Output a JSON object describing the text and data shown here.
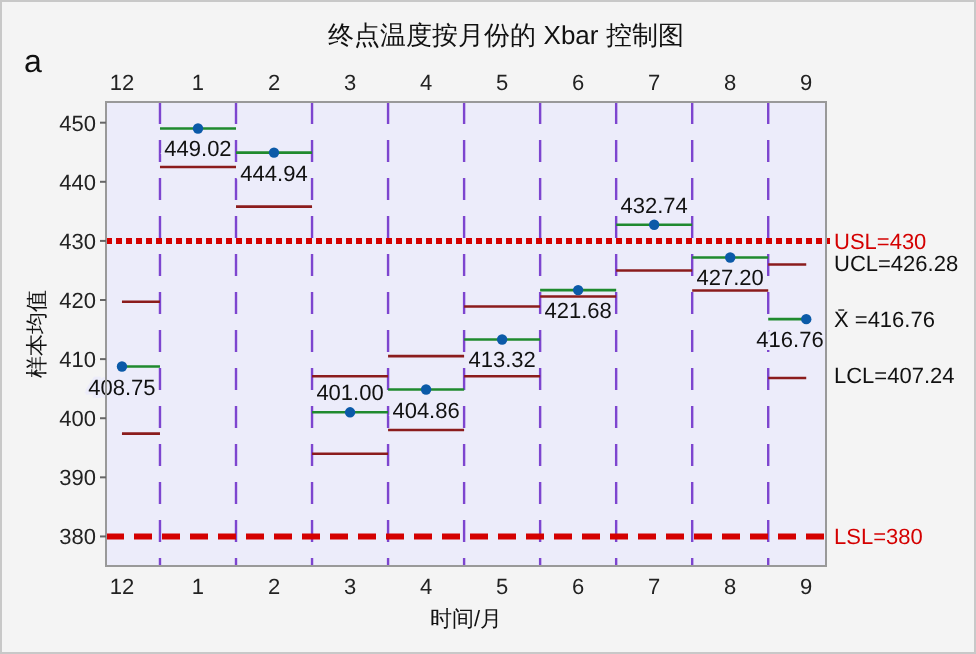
{
  "chart_data": {
    "type": "scatter",
    "title": "终点温度按月份的 Xbar 控制图",
    "xlabel": "时间/月",
    "ylabel": "样本均值",
    "categories": [
      "12",
      "1",
      "2",
      "3",
      "4",
      "5",
      "6",
      "7",
      "8",
      "9"
    ],
    "series": [
      {
        "type": "step",
        "color": "#1f8a2e",
        "values": [
          408.75,
          449.02,
          444.94,
          401.0,
          404.86,
          413.32,
          421.68,
          432.74,
          427.2,
          416.76
        ]
      },
      {
        "type": "step",
        "color": "#8b1c1c",
        "values": [
          419.7,
          null,
          null,
          407.1,
          410.5,
          418.9,
          null,
          null,
          null,
          426.0
        ]
      },
      {
        "type": "step",
        "color": "#8b1c1c",
        "values": [
          397.4,
          442.5,
          435.8,
          394.0,
          398.0,
          407.1,
          420.6,
          425.0,
          421.6,
          406.8
        ]
      },
      {
        "color": "#0b5aa8",
        "values": [
          408.75,
          449.02,
          444.94,
          401.0,
          404.86,
          413.32,
          421.68,
          432.74,
          427.2,
          416.76
        ],
        "value_labels": [
          "408.75",
          "449.02",
          "444.94",
          "401.00",
          "404.86",
          "413.32",
          "421.68",
          "432.74",
          "427.20",
          "416.76"
        ],
        "marker": "circle"
      }
    ],
    "ylim": [
      375,
      453.5
    ],
    "yticks": [
      380,
      390,
      400,
      410,
      420,
      430,
      440,
      450
    ],
    "grid": "x",
    "ref_lines": [
      {
        "axis": "y",
        "value": 430,
        "label": "USL=430",
        "color": "#d40000",
        "line_style": "dotted"
      },
      {
        "axis": "y",
        "value": 380,
        "label": "LSL=380",
        "color": "#d40000",
        "line_style": "dashed"
      }
    ],
    "annotations": [
      "a",
      {
        "text": "UCL=426.28",
        "x": "9",
        "y": 426.28
      },
      {
        "text": "X̄ =416.76",
        "x": "9",
        "y": 416.76
      },
      {
        "text": "LCL=407.24",
        "x": "9",
        "y": 407.24
      }
    ]
  }
}
